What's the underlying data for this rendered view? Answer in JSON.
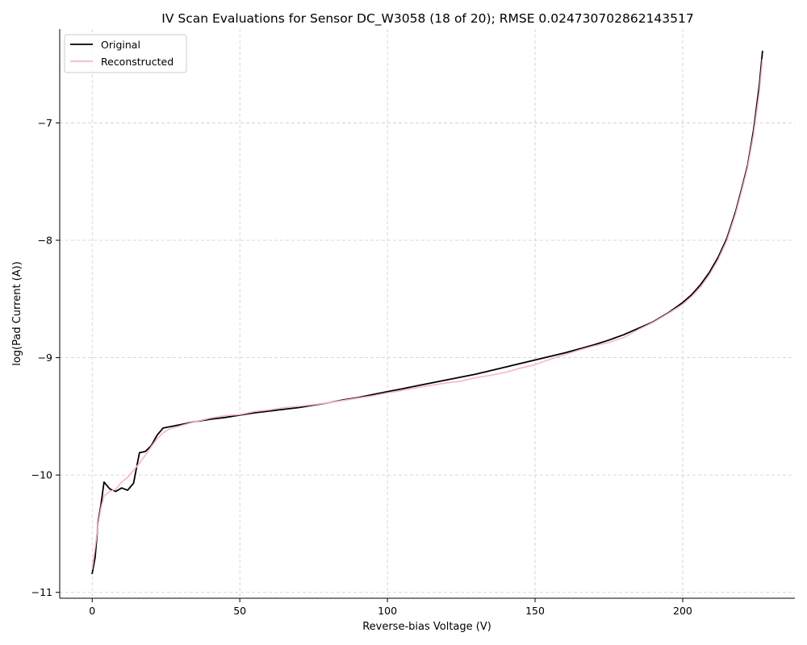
{
  "chart_data": {
    "type": "line",
    "title": "IV Scan Evaluations for Sensor DC_W3058 (18 of 20); RMSE 0.024730702862143517",
    "xlabel": "Reverse-bias Voltage (V)",
    "ylabel": "log(Pad Current (A))",
    "xlim": [
      -11,
      238
    ],
    "ylim": [
      -11.05,
      -6.2
    ],
    "xticks": [
      0,
      50,
      100,
      150,
      200
    ],
    "xtick_labels": [
      "0",
      "50",
      "100",
      "150",
      "200"
    ],
    "yticks": [
      -11,
      -10,
      -9,
      -8,
      -7
    ],
    "ytick_labels": [
      "−11",
      "−10",
      "−9",
      "−8",
      "−7"
    ],
    "grid": true,
    "legend": "top-left",
    "series": [
      {
        "name": "Original",
        "color": "#000000",
        "x": [
          0,
          1,
          2,
          3,
          4,
          6,
          8,
          10,
          12,
          14,
          16,
          18,
          20,
          22,
          24,
          26,
          30,
          35,
          40,
          45,
          50,
          55,
          60,
          65,
          70,
          75,
          80,
          85,
          90,
          95,
          100,
          105,
          110,
          115,
          120,
          125,
          130,
          135,
          140,
          145,
          150,
          155,
          160,
          165,
          170,
          175,
          180,
          185,
          190,
          195,
          200,
          203,
          206,
          209,
          212,
          215,
          218,
          220,
          222,
          224,
          226,
          227
        ],
        "y": [
          -10.84,
          -10.7,
          -10.4,
          -10.25,
          -10.06,
          -10.12,
          -10.14,
          -10.11,
          -10.13,
          -10.07,
          -9.81,
          -9.8,
          -9.75,
          -9.66,
          -9.6,
          -9.59,
          -9.57,
          -9.545,
          -9.525,
          -9.51,
          -9.49,
          -9.47,
          -9.455,
          -9.44,
          -9.425,
          -9.405,
          -9.385,
          -9.36,
          -9.34,
          -9.315,
          -9.29,
          -9.265,
          -9.24,
          -9.215,
          -9.19,
          -9.165,
          -9.14,
          -9.11,
          -9.08,
          -9.05,
          -9.02,
          -8.99,
          -8.96,
          -8.925,
          -8.89,
          -8.85,
          -8.805,
          -8.75,
          -8.695,
          -8.62,
          -8.53,
          -8.465,
          -8.38,
          -8.275,
          -8.145,
          -7.98,
          -7.75,
          -7.56,
          -7.36,
          -7.06,
          -6.67,
          -6.39
        ]
      },
      {
        "name": "Reconstructed",
        "color": "#f4b8c8",
        "x": [
          0,
          1,
          2,
          3,
          4,
          6,
          8,
          10,
          12,
          14,
          16,
          18,
          20,
          22,
          24,
          26,
          30,
          35,
          40,
          45,
          50,
          55,
          60,
          65,
          70,
          75,
          80,
          85,
          90,
          95,
          100,
          105,
          110,
          115,
          120,
          125,
          130,
          135,
          140,
          145,
          150,
          155,
          160,
          165,
          170,
          175,
          180,
          185,
          190,
          195,
          200,
          203,
          206,
          209,
          212,
          215,
          218,
          220,
          222,
          224,
          226,
          227
        ],
        "y": [
          -10.8,
          -10.62,
          -10.42,
          -10.28,
          -10.18,
          -10.14,
          -10.12,
          -10.06,
          -10.02,
          -9.96,
          -9.9,
          -9.83,
          -9.76,
          -9.69,
          -9.64,
          -9.61,
          -9.58,
          -9.545,
          -9.515,
          -9.495,
          -9.485,
          -9.46,
          -9.445,
          -9.425,
          -9.415,
          -9.4,
          -9.385,
          -9.365,
          -9.345,
          -9.325,
          -9.3,
          -9.28,
          -9.255,
          -9.235,
          -9.215,
          -9.2,
          -9.17,
          -9.15,
          -9.125,
          -9.09,
          -9.06,
          -9.015,
          -8.975,
          -8.935,
          -8.9,
          -8.87,
          -8.83,
          -8.76,
          -8.7,
          -8.625,
          -8.545,
          -8.48,
          -8.4,
          -8.295,
          -8.165,
          -8.0,
          -7.77,
          -7.58,
          -7.38,
          -7.1,
          -6.73,
          -6.46
        ]
      }
    ]
  }
}
